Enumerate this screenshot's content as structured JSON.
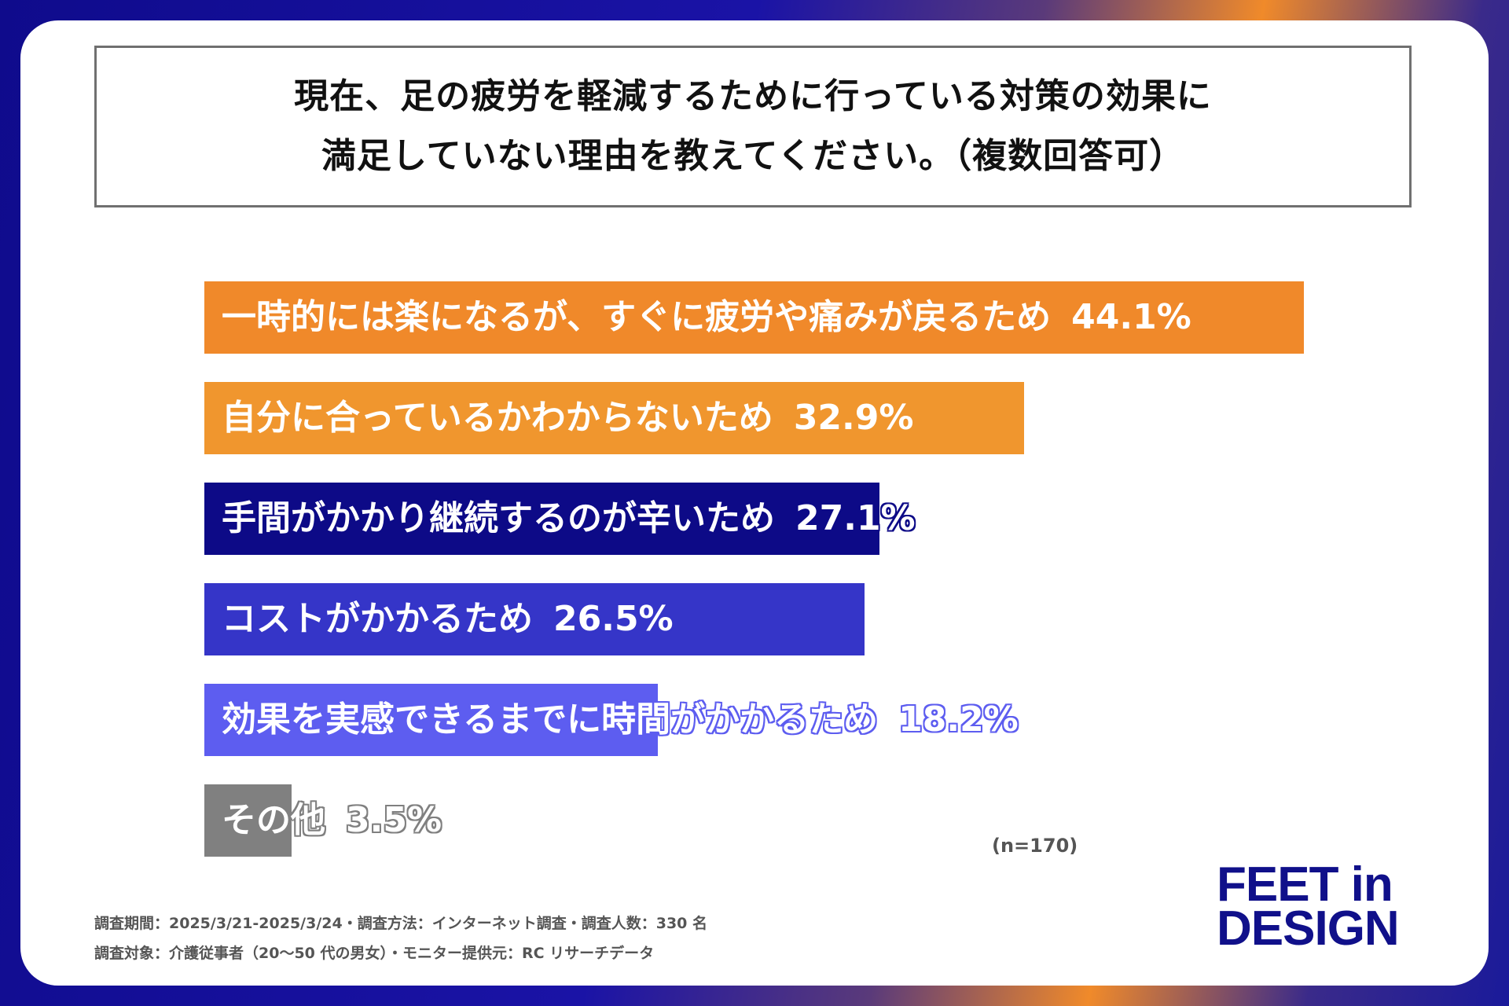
{
  "title": {
    "line1": "現在、足の疲労を軽減するために行っている対策の効果に",
    "line2": "満足していない理由を教えてください。（複数回答可）"
  },
  "chart_data": {
    "type": "bar",
    "orientation": "horizontal",
    "unit": "%",
    "xlim": [
      0,
      50
    ],
    "categories": [
      "一時的には楽になるが、すぐに疲労や痛みが戻るため",
      "自分に合っているかわからないため",
      "手間がかかり継続するのが辛いため",
      "コストがかかるため",
      "効果を実感できるまでに時間がかかるため",
      "その他"
    ],
    "values": [
      44.1,
      32.9,
      27.1,
      26.5,
      18.2,
      3.5
    ],
    "value_labels": [
      "44.1%",
      "32.9%",
      "27.1%",
      "26.5%",
      "18.2%",
      "3.5%"
    ],
    "colors": [
      "#f0892a",
      "#f0962e",
      "#0d0a87",
      "#3535c8",
      "#5d5df0",
      "#808080"
    ],
    "sample_note": "(n=170)"
  },
  "footer": {
    "note1": "調査期間：2025/3/21-2025/3/24・調査方法：インターネット調査・調査人数：330 名",
    "note2": "調査対象：介護従事者（20～50 代の男女）・モニター提供元：RC リサーチデータ"
  },
  "logo": {
    "line1": "FEET in",
    "line2": "DESIGN"
  }
}
